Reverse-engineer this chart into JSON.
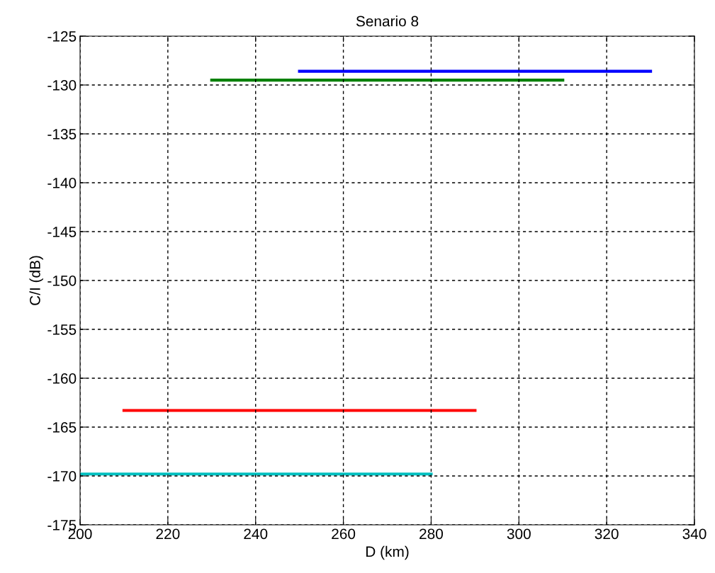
{
  "chart_data": {
    "type": "line",
    "title": "Senario 8",
    "xlabel": "D (km)",
    "ylabel": "C/I (dB)",
    "series": [
      {
        "color": "#0000ff",
        "x": [
          250,
          330
        ],
        "values": [
          -128.6,
          -128.6
        ]
      },
      {
        "color": "#008000",
        "x": [
          230,
          310
        ],
        "values": [
          -129.5,
          -129.5
        ]
      },
      {
        "color": "#ff0000",
        "x": [
          210,
          290
        ],
        "values": [
          -163.3,
          -163.3
        ]
      },
      {
        "color": "#00bfbf",
        "x": [
          200,
          280
        ],
        "values": [
          -169.8,
          -169.8
        ]
      }
    ],
    "xlim": [
      200,
      340
    ],
    "xticks": [
      200,
      220,
      240,
      260,
      280,
      300,
      320,
      340
    ],
    "ylim": [
      -175,
      -125
    ],
    "yticks": [
      -175,
      -170,
      -165,
      -160,
      -155,
      -150,
      -145,
      -140,
      -135,
      -130,
      -125
    ],
    "grid": true,
    "line_style": "solid",
    "marker": "none"
  }
}
